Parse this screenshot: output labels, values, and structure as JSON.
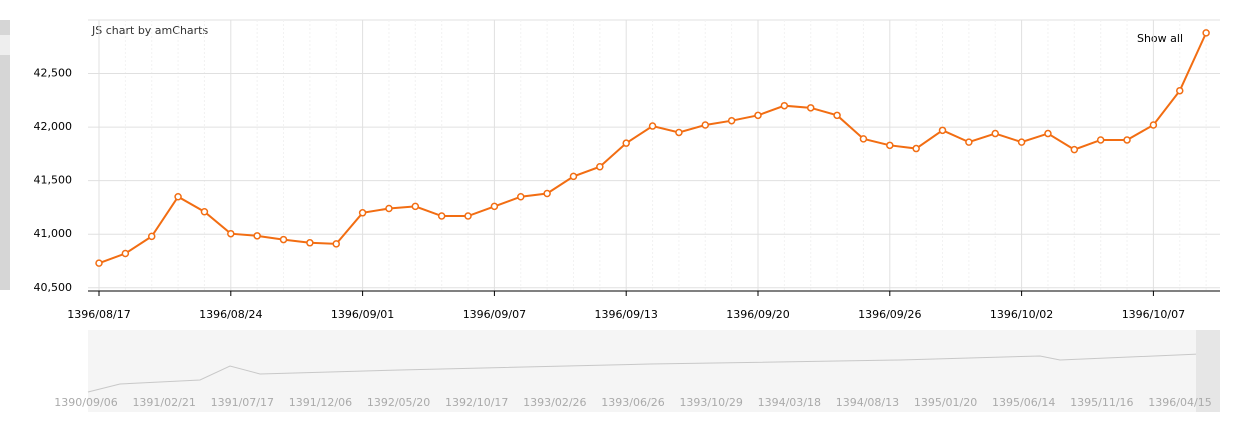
{
  "chart_data": {
    "type": "line",
    "credit": "JS chart by amCharts",
    "button": "Show all",
    "categories": [
      "1396/08/17",
      null,
      null,
      null,
      null,
      "1396/08/24",
      null,
      null,
      null,
      null,
      "1396/09/01",
      null,
      null,
      null,
      null,
      "1396/09/07",
      null,
      null,
      null,
      null,
      "1396/09/13",
      null,
      null,
      null,
      null,
      "1396/09/20",
      null,
      null,
      null,
      null,
      "1396/09/26",
      null,
      null,
      null,
      null,
      "1396/10/02",
      null,
      null,
      null,
      null,
      "1396/10/07",
      null,
      null
    ],
    "series": [
      {
        "color": "#f26d12",
        "values": [
          40730,
          40820,
          40980,
          41350,
          41210,
          41005,
          40985,
          40950,
          40920,
          40910,
          41200,
          41240,
          41260,
          41170,
          41170,
          41260,
          41350,
          41380,
          41540,
          41630,
          41850,
          42010,
          41950,
          42020,
          42060,
          42110,
          42200,
          42180,
          42110,
          41890,
          41830,
          41800,
          41970,
          41860,
          41940,
          41860,
          41940,
          41790,
          41880,
          41880,
          42020,
          42340,
          42880
        ]
      }
    ],
    "ylim": [
      40470,
      43000
    ],
    "yticks": [
      {
        "value": 40500,
        "label": "40,500"
      },
      {
        "value": 41000,
        "label": "41,000"
      },
      {
        "value": 41500,
        "label": "41,500"
      },
      {
        "value": 42000,
        "label": "42,000"
      },
      {
        "value": 42500,
        "label": "42,500"
      }
    ],
    "grid": true,
    "scrollbar_labels": [
      "1390/09/06",
      "1391/02/21",
      "1391/07/17",
      "1391/12/06",
      "1392/05/20",
      "1392/10/17",
      "1393/02/26",
      "1393/06/26",
      "1393/10/29",
      "1394/03/18",
      "1394/08/13",
      "1395/01/20",
      "1395/06/14",
      "1395/11/16",
      "1396/04/15"
    ]
  }
}
